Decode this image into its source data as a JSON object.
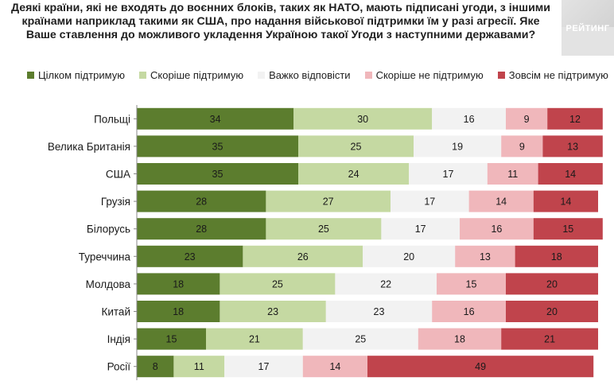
{
  "title": "Деякі країни, які не входять до воєнних блоків, таких як НАТО, мають підписані угоди, з іншими країнами наприклад такими як США, про надання військової підтримки їм у разі агресії. Яке Ваше ставлення до можливого укладення Україною такої Угоди з наступними державами?",
  "logo": {
    "text": "РЕЙТИНГ"
  },
  "colors": {
    "full_support": "#5c7d2e",
    "rather_support": "#c5d9a2",
    "hard_to_say": "#f2f2f2",
    "rather_not": "#f0b7bb",
    "not_at_all": "#c0444c"
  },
  "chart_data": {
    "type": "bar",
    "orientation": "horizontal",
    "stacked": true,
    "title": "Деякі країни, які не входять до воєнних блоків, таких як НАТО, мають підписані угоди, з іншими країнами наприклад такими як США, про надання військової підтримки їм у разі агресії. Яке Ваше ставлення до можливого укладення Україною такої Угоди з наступними державами?",
    "xlabel": "",
    "ylabel": "",
    "xlim": [
      0,
      100
    ],
    "legend_position": "top",
    "categories": [
      "Польщі",
      "Велика Британія",
      "США",
      "Грузія",
      "Білорусь",
      "Туреччина",
      "Молдова",
      "Китай",
      "Індія",
      "Росії"
    ],
    "series": [
      {
        "name": "Цілком підтримую",
        "color": "#5c7d2e",
        "values": [
          34,
          35,
          35,
          28,
          28,
          23,
          18,
          18,
          15,
          8
        ]
      },
      {
        "name": "Скоріше підтримую",
        "color": "#c5d9a2",
        "values": [
          30,
          25,
          24,
          27,
          25,
          26,
          25,
          23,
          21,
          11
        ]
      },
      {
        "name": "Важко відповісти",
        "color": "#f2f2f2",
        "values": [
          16,
          19,
          17,
          17,
          17,
          20,
          22,
          23,
          25,
          17
        ]
      },
      {
        "name": "Скоріше  не підтримую",
        "color": "#f0b7bb",
        "values": [
          9,
          9,
          11,
          14,
          16,
          13,
          15,
          16,
          18,
          14
        ]
      },
      {
        "name": "Зовсім не підтримую",
        "color": "#c0444c",
        "values": [
          12,
          13,
          14,
          14,
          15,
          18,
          20,
          20,
          21,
          49
        ]
      }
    ]
  }
}
